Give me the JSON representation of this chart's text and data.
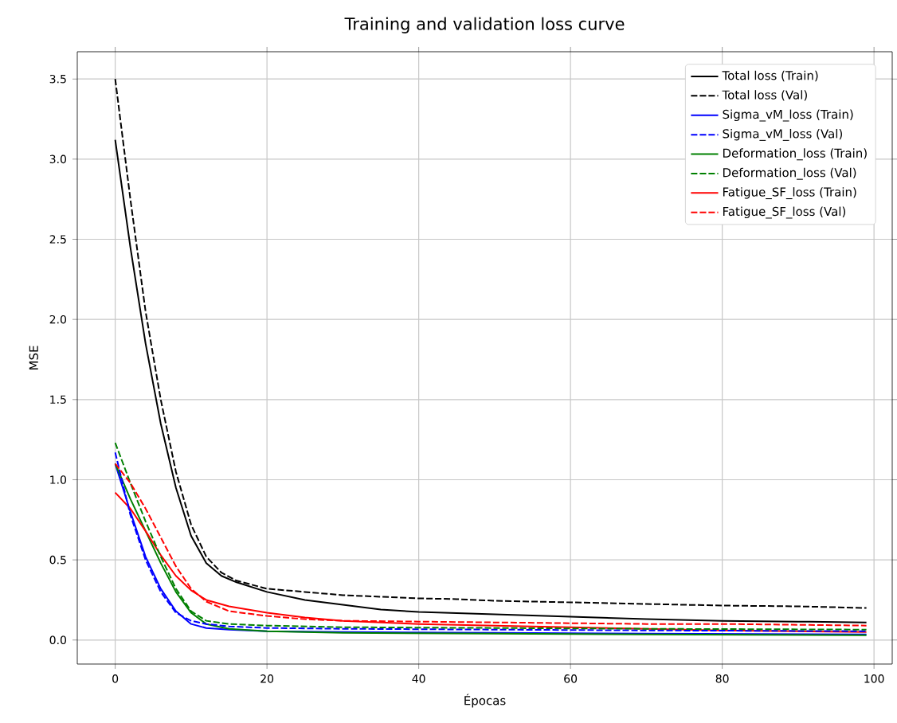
{
  "chart_data": {
    "type": "line",
    "title": "Training and validation loss curve",
    "xlabel": "Épocas",
    "ylabel": "MSE",
    "xlim": [
      -5,
      102.4
    ],
    "ylim": [
      -0.15,
      3.67
    ],
    "xticks": [
      0,
      20,
      40,
      60,
      80,
      100
    ],
    "yticks": [
      {
        "value": 0,
        "label": "0.0"
      },
      0.5,
      {
        "value": 1,
        "label": "1.0"
      },
      1.5,
      {
        "value": 2,
        "label": "2.0"
      },
      2.5,
      {
        "value": 3,
        "label": "3.0"
      },
      3.5
    ],
    "grid": true,
    "legend": "top right",
    "series": [
      {
        "name": "Total loss (Train)",
        "color": "#000000",
        "line_style": "solid",
        "x": [
          0,
          2,
          4,
          6,
          8,
          10,
          12,
          14,
          16,
          20,
          25,
          30,
          35,
          40,
          50,
          60,
          70,
          80,
          90,
          99
        ],
        "values": [
          3.12,
          2.45,
          1.85,
          1.35,
          0.95,
          0.65,
          0.48,
          0.4,
          0.36,
          0.3,
          0.25,
          0.22,
          0.19,
          0.175,
          0.16,
          0.145,
          0.13,
          0.12,
          0.115,
          0.11
        ]
      },
      {
        "name": "Total loss (Val)",
        "color": "#000000",
        "line_style": "dashed",
        "x": [
          0,
          2,
          4,
          6,
          8,
          10,
          12,
          14,
          16,
          20,
          25,
          30,
          35,
          40,
          45,
          50,
          55,
          60,
          70,
          80,
          90,
          99
        ],
        "values": [
          3.5,
          2.75,
          2.05,
          1.5,
          1.05,
          0.72,
          0.52,
          0.42,
          0.37,
          0.32,
          0.3,
          0.28,
          0.27,
          0.26,
          0.255,
          0.245,
          0.24,
          0.235,
          0.225,
          0.215,
          0.21,
          0.2
        ]
      },
      {
        "name": "Sigma_vM_loss (Train)",
        "color": "#0000ff",
        "line_style": "solid",
        "x": [
          0,
          2,
          4,
          6,
          8,
          10,
          12,
          15,
          20,
          30,
          50,
          70,
          99
        ],
        "values": [
          1.1,
          0.8,
          0.52,
          0.32,
          0.18,
          0.1,
          0.075,
          0.065,
          0.055,
          0.05,
          0.045,
          0.04,
          0.035
        ]
      },
      {
        "name": "Sigma_vM_loss (Val)",
        "color": "#0000ff",
        "line_style": "dashed",
        "x": [
          0,
          2,
          4,
          6,
          8,
          10,
          12,
          15,
          20,
          30,
          50,
          70,
          99
        ],
        "values": [
          1.17,
          0.78,
          0.5,
          0.3,
          0.17,
          0.12,
          0.1,
          0.085,
          0.075,
          0.07,
          0.065,
          0.06,
          0.055
        ]
      },
      {
        "name": "Deformation_loss (Train)",
        "color": "#008000",
        "line_style": "solid",
        "x": [
          0,
          2,
          4,
          6,
          8,
          10,
          12,
          15,
          20,
          30,
          50,
          70,
          99
        ],
        "values": [
          1.1,
          0.88,
          0.68,
          0.48,
          0.3,
          0.17,
          0.1,
          0.07,
          0.055,
          0.045,
          0.04,
          0.035,
          0.03
        ]
      },
      {
        "name": "Deformation_loss (Val)",
        "color": "#008000",
        "line_style": "dashed",
        "x": [
          0,
          2,
          4,
          6,
          8,
          10,
          12,
          15,
          20,
          30,
          50,
          70,
          99
        ],
        "values": [
          1.23,
          0.98,
          0.74,
          0.52,
          0.32,
          0.18,
          0.12,
          0.1,
          0.09,
          0.08,
          0.075,
          0.07,
          0.065
        ]
      },
      {
        "name": "Fatigue_SF_loss (Train)",
        "color": "#ff0000",
        "line_style": "solid",
        "x": [
          0,
          2,
          4,
          6,
          8,
          10,
          12,
          15,
          20,
          25,
          30,
          40,
          50,
          60,
          70,
          80,
          90,
          99
        ],
        "values": [
          0.92,
          0.82,
          0.68,
          0.53,
          0.4,
          0.31,
          0.25,
          0.21,
          0.17,
          0.14,
          0.12,
          0.1,
          0.09,
          0.08,
          0.07,
          0.06,
          0.055,
          0.05
        ]
      },
      {
        "name": "Fatigue_SF_loss (Val)",
        "color": "#ff0000",
        "line_style": "dashed",
        "x": [
          0,
          2,
          4,
          6,
          8,
          10,
          12,
          15,
          20,
          25,
          30,
          40,
          50,
          60,
          70,
          80,
          90,
          99
        ],
        "values": [
          1.1,
          0.98,
          0.82,
          0.64,
          0.46,
          0.32,
          0.24,
          0.18,
          0.15,
          0.13,
          0.12,
          0.115,
          0.11,
          0.105,
          0.1,
          0.1,
          0.095,
          0.09
        ]
      }
    ]
  }
}
